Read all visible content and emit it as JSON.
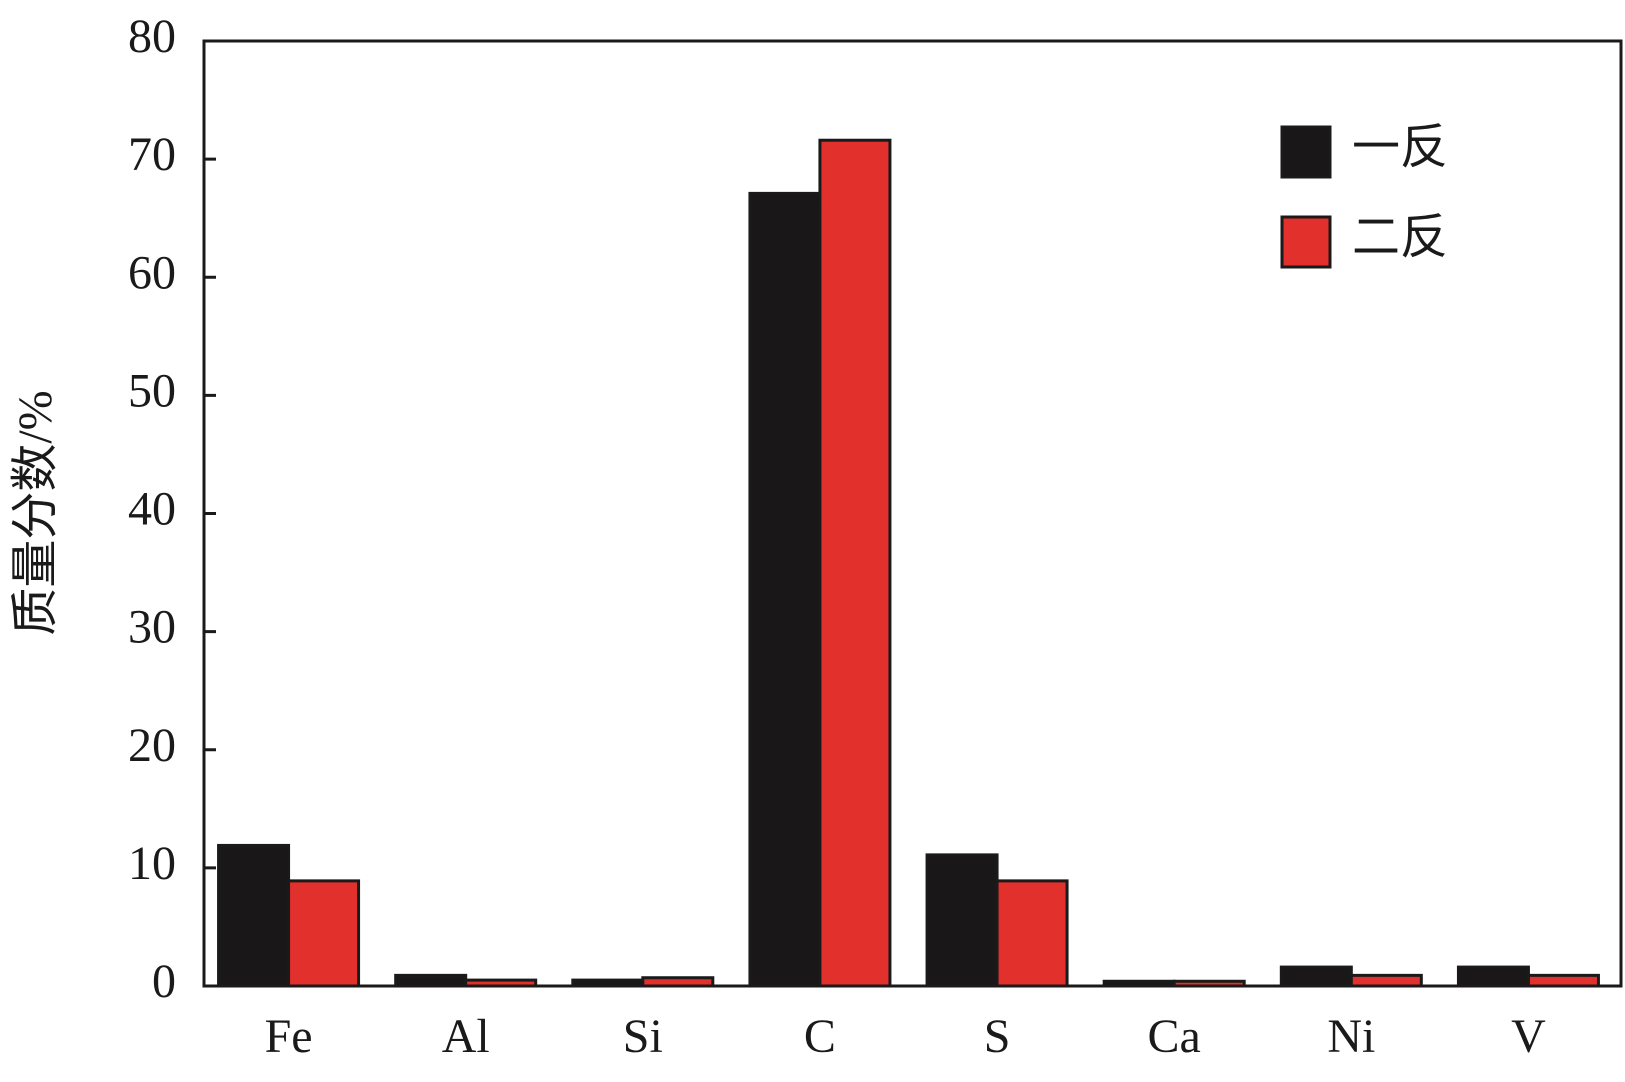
{
  "chart_data": {
    "type": "bar",
    "ylabel": "质量分数/%",
    "categories": [
      "Fe",
      "Al",
      "Si",
      "C",
      "S",
      "Ca",
      "Ni",
      "V"
    ],
    "series": [
      {
        "name": "一反",
        "color": "#1a1718",
        "values": [
          11.9,
          0.9,
          0.5,
          67.1,
          11.1,
          0.4,
          1.6,
          1.6
        ]
      },
      {
        "name": "二反",
        "color": "#e2302d",
        "values": [
          8.9,
          0.5,
          0.7,
          71.6,
          8.9,
          0.4,
          0.9,
          0.9
        ]
      }
    ],
    "ylim": [
      0,
      80
    ],
    "yticks": [
      0,
      10,
      20,
      30,
      40,
      50,
      60,
      70,
      80
    ],
    "legend": "upper right"
  }
}
